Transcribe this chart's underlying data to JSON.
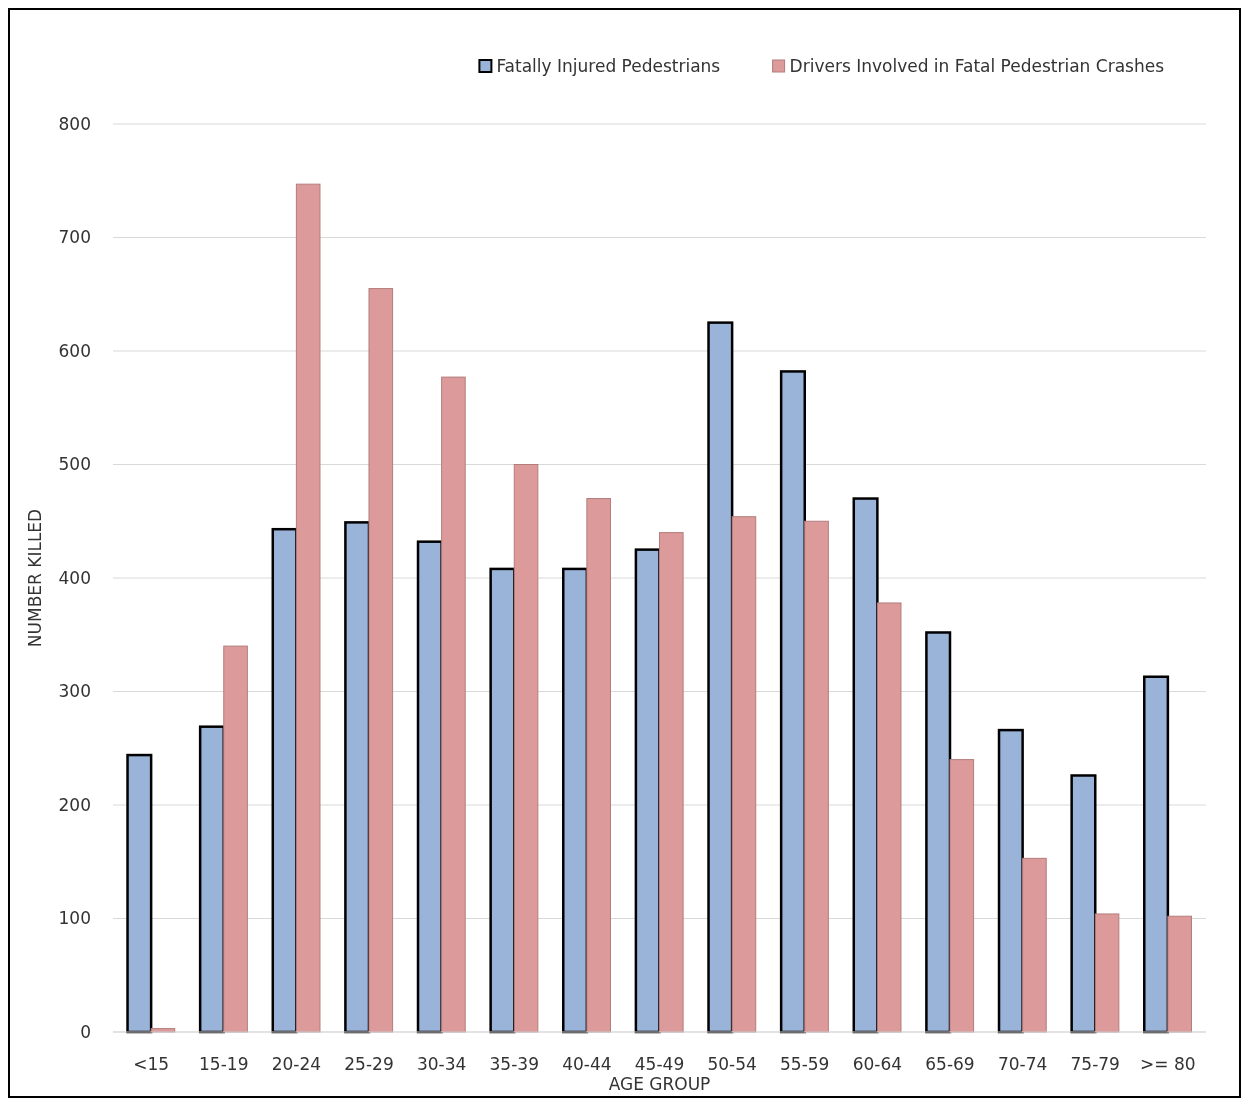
{
  "chart_data": {
    "type": "bar",
    "xlabel": "AGE GROUP",
    "ylabel": "NUMBER KILLED",
    "categories": [
      "<15",
      "15-19",
      "20-24",
      "25-29",
      "30-34",
      "35-39",
      "40-44",
      "45-49",
      "50-54",
      "55-59",
      "60-64",
      "65-69",
      "70-74",
      "75-79",
      ">= 80"
    ],
    "series": [
      {
        "name": "Fatally Injured Pedestrians",
        "color": "#9ab3d9",
        "values": [
          244,
          269,
          443,
          449,
          432,
          408,
          408,
          425,
          625,
          582,
          470,
          352,
          266,
          226,
          313
        ]
      },
      {
        "name": "Drivers Involved in Fatal Pedestrian Crashes",
        "color": "#dc9b9a",
        "values": [
          3,
          340,
          747,
          655,
          577,
          500,
          470,
          440,
          454,
          450,
          378,
          240,
          153,
          104,
          102
        ]
      }
    ],
    "ylim": [
      0,
      800
    ],
    "yticks": [
      0,
      100,
      200,
      300,
      400,
      500,
      600,
      700,
      800
    ],
    "grid": "y",
    "legend": "top right"
  }
}
